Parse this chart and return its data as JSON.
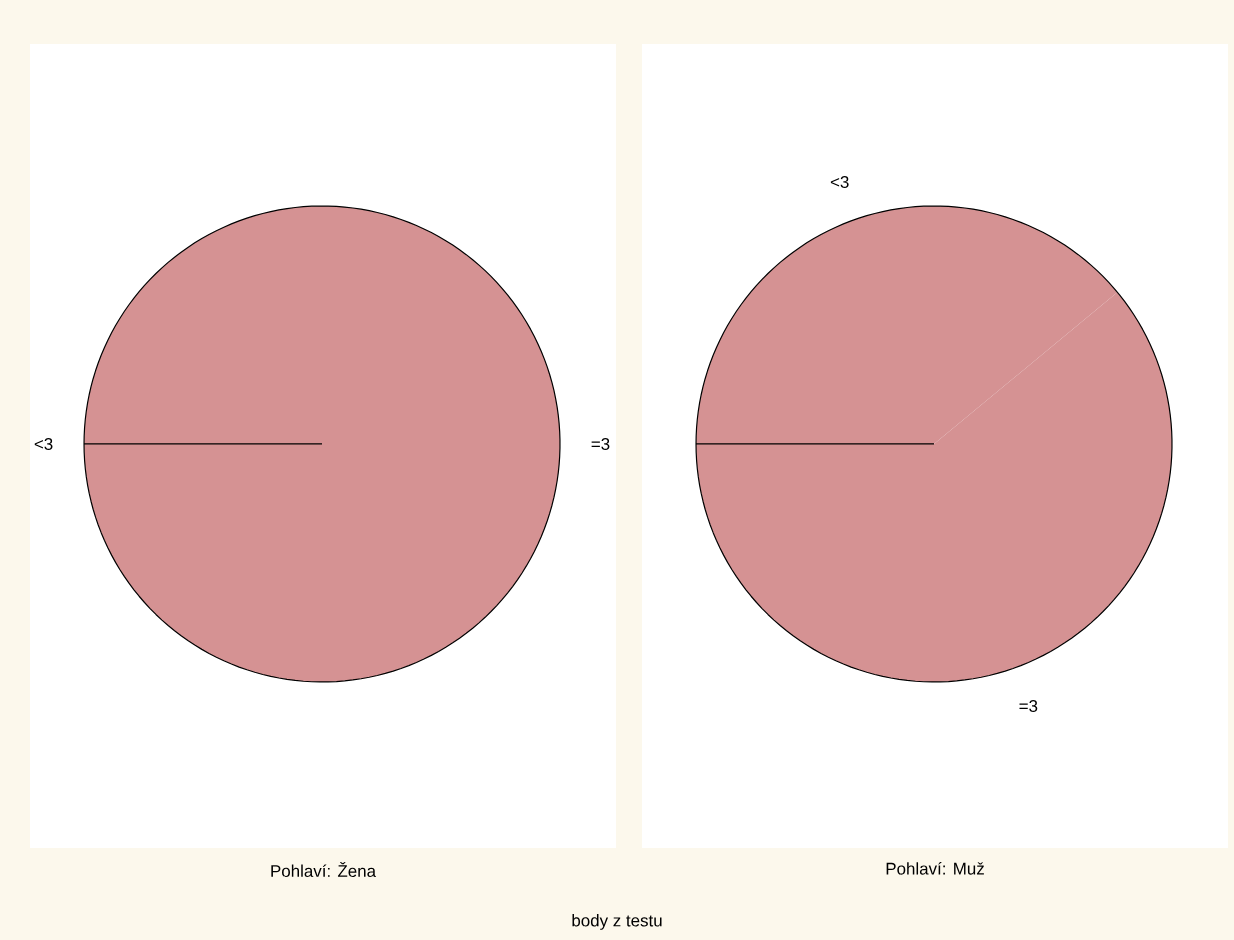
{
  "chart_data": [
    {
      "type": "pie",
      "title": "Pohlaví: Žena",
      "categories": [
        "<3",
        "=3"
      ],
      "values": [
        0,
        100
      ],
      "colors": [
        "#d59293",
        "#d59293"
      ],
      "annotations": [
        "body z testu"
      ]
    },
    {
      "type": "pie",
      "title": "Pohlaví: Muž",
      "categories": [
        "<3",
        "=3"
      ],
      "values": [
        39,
        61
      ],
      "colors": [
        "#d59293",
        "#d59293"
      ]
    }
  ]
}
